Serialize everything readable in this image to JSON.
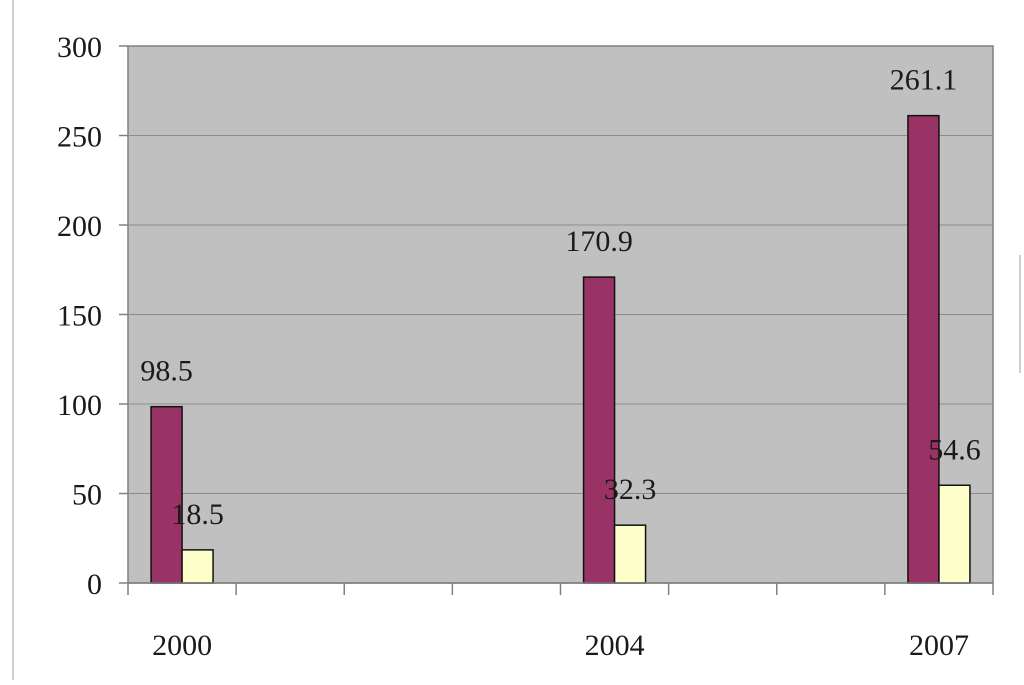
{
  "chart_data": {
    "type": "bar",
    "title": "",
    "xlabel": "",
    "ylabel": "",
    "categories": [
      "2000",
      "2004",
      "2007"
    ],
    "x_positions": [
      2000,
      2004,
      2007
    ],
    "x_domain": [
      1999.5,
      2007.5
    ],
    "series": [
      {
        "values": [
          98.5,
          170.9,
          261.1
        ],
        "color": "#993366"
      },
      {
        "values": [
          18.5,
          32.3,
          54.6
        ],
        "color": "#ffffcc"
      }
    ],
    "ylim": [
      0,
      300
    ],
    "yticks": [
      0,
      50,
      100,
      150,
      200,
      250,
      300
    ],
    "grid": true,
    "plot_background": "#c0c0c0",
    "legend": "none"
  }
}
